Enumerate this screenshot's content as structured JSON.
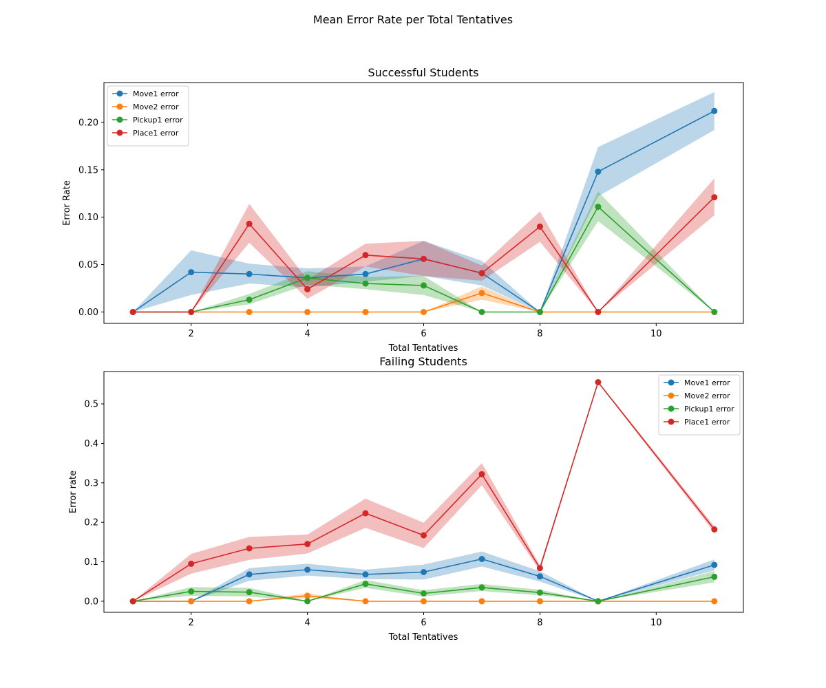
{
  "figure": {
    "suptitle": "Mean Error Rate per Total Tentatives"
  },
  "chart_data": [
    {
      "type": "line",
      "title": "Successful Students",
      "xlabel": "Total Tentatives",
      "ylabel": "Error Rate",
      "xlim": [
        0.5,
        11.5
      ],
      "ylim": [
        -0.012,
        0.242
      ],
      "xticks": [
        2,
        4,
        6,
        8,
        10
      ],
      "xtick_labels": [
        "2",
        "4",
        "6",
        "8",
        "10"
      ],
      "yticks": [
        0.0,
        0.05,
        0.1,
        0.15,
        0.2
      ],
      "ytick_labels": [
        "0.00",
        "0.05",
        "0.10",
        "0.15",
        "0.20"
      ],
      "legend": "top-left",
      "grid": false,
      "x": [
        1,
        2,
        3,
        4,
        5,
        6,
        7,
        8,
        9,
        10,
        11
      ],
      "series": [
        {
          "name": "Move1 error",
          "color": "#1f77b4",
          "x": [
            1,
            2,
            3,
            4,
            5,
            6,
            7,
            8,
            9,
            11
          ],
          "values": [
            0.0,
            0.042,
            0.04,
            0.036,
            0.04,
            0.056,
            0.041,
            0.0,
            0.148,
            0.212
          ],
          "lower": [
            0.0,
            0.018,
            0.03,
            0.026,
            0.032,
            0.038,
            0.028,
            0.0,
            0.122,
            0.192
          ],
          "upper": [
            0.0,
            0.065,
            0.051,
            0.046,
            0.048,
            0.075,
            0.054,
            0.0,
            0.174,
            0.232
          ]
        },
        {
          "name": "Move2 error",
          "color": "#ff7f0e",
          "x": [
            1,
            2,
            3,
            4,
            5,
            6,
            7,
            8,
            9,
            11
          ],
          "values": [
            0.0,
            0.0,
            0.0,
            0.0,
            0.0,
            0.0,
            0.02,
            0.0,
            0.0,
            0.0
          ],
          "lower": [
            0.0,
            0.0,
            0.0,
            0.0,
            0.0,
            0.0,
            0.013,
            0.0,
            0.0,
            0.0
          ],
          "upper": [
            0.0,
            0.0,
            0.0,
            0.0,
            0.0,
            0.0,
            0.027,
            0.0,
            0.0,
            0.0
          ]
        },
        {
          "name": "Pickup1 error",
          "color": "#2ca02c",
          "x": [
            1,
            2,
            3,
            4,
            5,
            6,
            7,
            8,
            9,
            11
          ],
          "values": [
            0.0,
            0.0,
            0.013,
            0.036,
            0.03,
            0.028,
            0.0,
            0.0,
            0.111,
            0.0
          ],
          "lower": [
            0.0,
            0.0,
            0.008,
            0.029,
            0.024,
            0.018,
            0.0,
            0.0,
            0.096,
            0.0
          ],
          "upper": [
            0.0,
            0.0,
            0.019,
            0.043,
            0.037,
            0.038,
            0.0,
            0.0,
            0.127,
            0.0
          ]
        },
        {
          "name": "Place1 error",
          "color": "#d62728",
          "x": [
            1,
            2,
            3,
            4,
            5,
            6,
            7,
            8,
            9,
            11
          ],
          "values": [
            0.0,
            0.0,
            0.093,
            0.024,
            0.06,
            0.056,
            0.041,
            0.09,
            0.0,
            0.121
          ],
          "lower": [
            0.0,
            0.0,
            0.073,
            0.014,
            0.048,
            0.038,
            0.033,
            0.074,
            0.0,
            0.102
          ],
          "upper": [
            0.0,
            0.0,
            0.114,
            0.034,
            0.072,
            0.075,
            0.049,
            0.106,
            0.0,
            0.141
          ]
        }
      ]
    },
    {
      "type": "line",
      "title": "Failing Students",
      "xlabel": "Total Tentatives",
      "ylabel": "Error rate",
      "xlim": [
        0.5,
        11.5
      ],
      "ylim": [
        -0.028,
        0.582
      ],
      "xticks": [
        2,
        4,
        6,
        8,
        10
      ],
      "xtick_labels": [
        "2",
        "4",
        "6",
        "8",
        "10"
      ],
      "yticks": [
        0.0,
        0.1,
        0.2,
        0.3,
        0.4,
        0.5
      ],
      "ytick_labels": [
        "0.0",
        "0.1",
        "0.2",
        "0.3",
        "0.4",
        "0.5"
      ],
      "legend": "top-right",
      "grid": false,
      "x": [
        1,
        2,
        3,
        4,
        5,
        6,
        7,
        8,
        9,
        10,
        11
      ],
      "series": [
        {
          "name": "Move1 error",
          "color": "#1f77b4",
          "x": [
            1,
            2,
            3,
            4,
            5,
            6,
            7,
            8,
            9,
            11
          ],
          "values": [
            0.0,
            0.0,
            0.068,
            0.08,
            0.068,
            0.074,
            0.107,
            0.063,
            0.0,
            0.092
          ],
          "lower": [
            0.0,
            0.0,
            0.052,
            0.065,
            0.056,
            0.055,
            0.088,
            0.05,
            0.0,
            0.078
          ],
          "upper": [
            0.0,
            0.0,
            0.084,
            0.095,
            0.08,
            0.093,
            0.126,
            0.076,
            0.0,
            0.106
          ]
        },
        {
          "name": "Move2 error",
          "color": "#ff7f0e",
          "x": [
            1,
            2,
            3,
            4,
            5,
            6,
            7,
            8,
            9,
            11
          ],
          "values": [
            0.0,
            0.0,
            0.0,
            0.014,
            0.0,
            0.0,
            0.0,
            0.0,
            0.0,
            0.0
          ],
          "lower": [
            0.0,
            0.0,
            0.0,
            0.008,
            0.0,
            0.0,
            0.0,
            0.0,
            0.0,
            0.0
          ],
          "upper": [
            0.0,
            0.0,
            0.0,
            0.02,
            0.0,
            0.0,
            0.0,
            0.0,
            0.0,
            0.0
          ]
        },
        {
          "name": "Pickup1 error",
          "color": "#2ca02c",
          "x": [
            1,
            2,
            3,
            4,
            5,
            6,
            7,
            8,
            9,
            11
          ],
          "values": [
            0.0,
            0.025,
            0.023,
            0.0,
            0.044,
            0.02,
            0.035,
            0.022,
            0.0,
            0.062
          ],
          "lower": [
            0.0,
            0.014,
            0.012,
            0.0,
            0.034,
            0.012,
            0.026,
            0.015,
            0.0,
            0.048
          ],
          "upper": [
            0.0,
            0.036,
            0.034,
            0.0,
            0.054,
            0.028,
            0.044,
            0.029,
            0.0,
            0.076
          ]
        },
        {
          "name": "Place1 error",
          "color": "#d62728",
          "x": [
            1,
            2,
            3,
            4,
            5,
            6,
            7,
            8,
            9,
            11
          ],
          "values": [
            0.0,
            0.095,
            0.134,
            0.145,
            0.223,
            0.167,
            0.322,
            0.084,
            0.555,
            0.182
          ],
          "lower": [
            0.0,
            0.07,
            0.105,
            0.121,
            0.186,
            0.135,
            0.294,
            0.077,
            0.553,
            0.174
          ],
          "upper": [
            0.0,
            0.12,
            0.163,
            0.169,
            0.26,
            0.199,
            0.35,
            0.091,
            0.557,
            0.19
          ]
        }
      ]
    }
  ]
}
